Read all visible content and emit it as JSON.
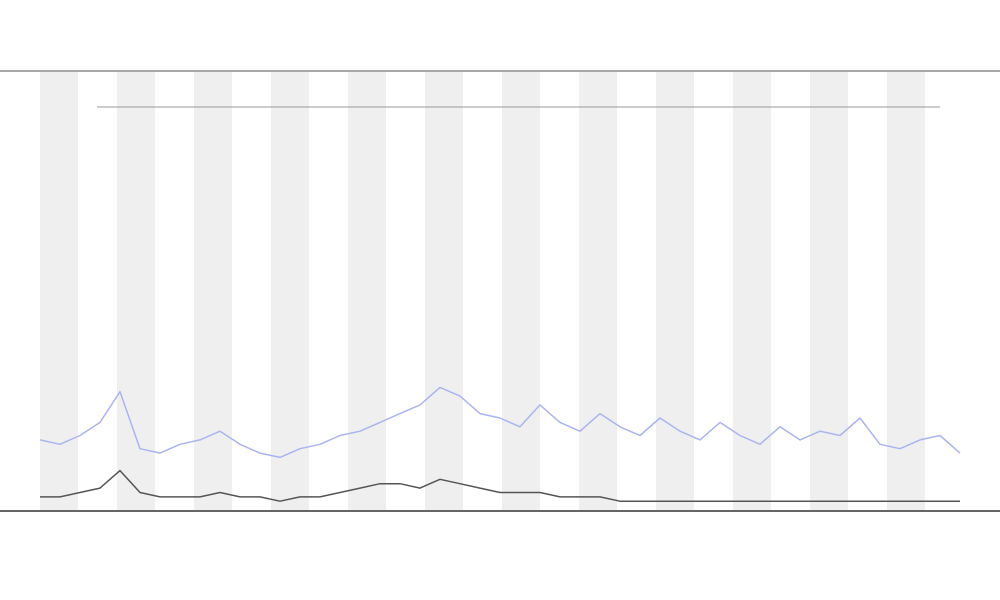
{
  "chart_data": {
    "type": "line",
    "x": [
      0,
      1,
      2,
      3,
      4,
      5,
      6,
      7,
      8,
      9,
      10,
      11,
      12,
      13,
      14,
      15,
      16,
      17,
      18,
      19,
      20,
      21,
      22,
      23,
      24,
      25,
      26,
      27,
      28,
      29,
      30,
      31,
      32,
      33,
      34,
      35,
      36,
      37,
      38,
      39,
      40,
      41,
      42,
      43,
      44,
      45,
      46
    ],
    "xlim": [
      0,
      46
    ],
    "ylim": [
      0,
      100
    ],
    "series": [
      {
        "color": "#aab4f0",
        "values": [
          16,
          15,
          17,
          20,
          27,
          14,
          13,
          15,
          16,
          18,
          15,
          13,
          12,
          14,
          15,
          17,
          18,
          20,
          22,
          24,
          28,
          26,
          22,
          21,
          19,
          24,
          20,
          18,
          22,
          19,
          17,
          21,
          18,
          16,
          20,
          17,
          15,
          19,
          16,
          18,
          17,
          21,
          15,
          14,
          16,
          17,
          13
        ]
      },
      {
        "color": "#555555",
        "values": [
          3,
          3,
          4,
          5,
          9,
          4,
          3,
          3,
          3,
          4,
          3,
          3,
          2,
          3,
          3,
          4,
          5,
          6,
          6,
          5,
          7,
          6,
          5,
          4,
          4,
          4,
          3,
          3,
          3,
          2,
          2,
          2,
          2,
          2,
          2,
          2,
          2,
          2,
          2,
          2,
          2,
          2,
          2,
          2,
          2,
          2,
          2
        ]
      }
    ]
  }
}
